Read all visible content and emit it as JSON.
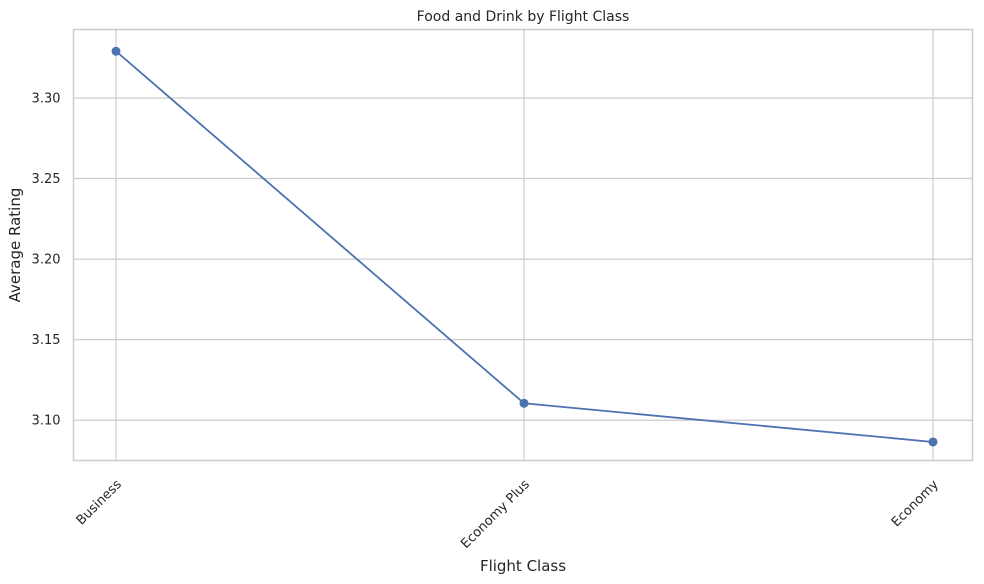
{
  "chart_data": {
    "type": "line",
    "title": "Food and Drink by Flight Class",
    "xlabel": "Flight Class",
    "ylabel": "Average Rating",
    "categories": [
      "Business",
      "Economy Plus",
      "Economy"
    ],
    "series": [
      {
        "values": [
          3.329,
          3.1105,
          3.0865
        ]
      }
    ],
    "ylim": [
      3.075,
      3.3425
    ],
    "yticks": [
      3.1,
      3.15,
      3.2,
      3.25,
      3.3
    ],
    "ytick_labels": [
      "3.10",
      "3.15",
      "3.20",
      "3.25",
      "3.30"
    ],
    "grid": true,
    "line_color": "#4c72b0",
    "grid_color": "#cccccc",
    "spine_color": "#cccccc"
  }
}
